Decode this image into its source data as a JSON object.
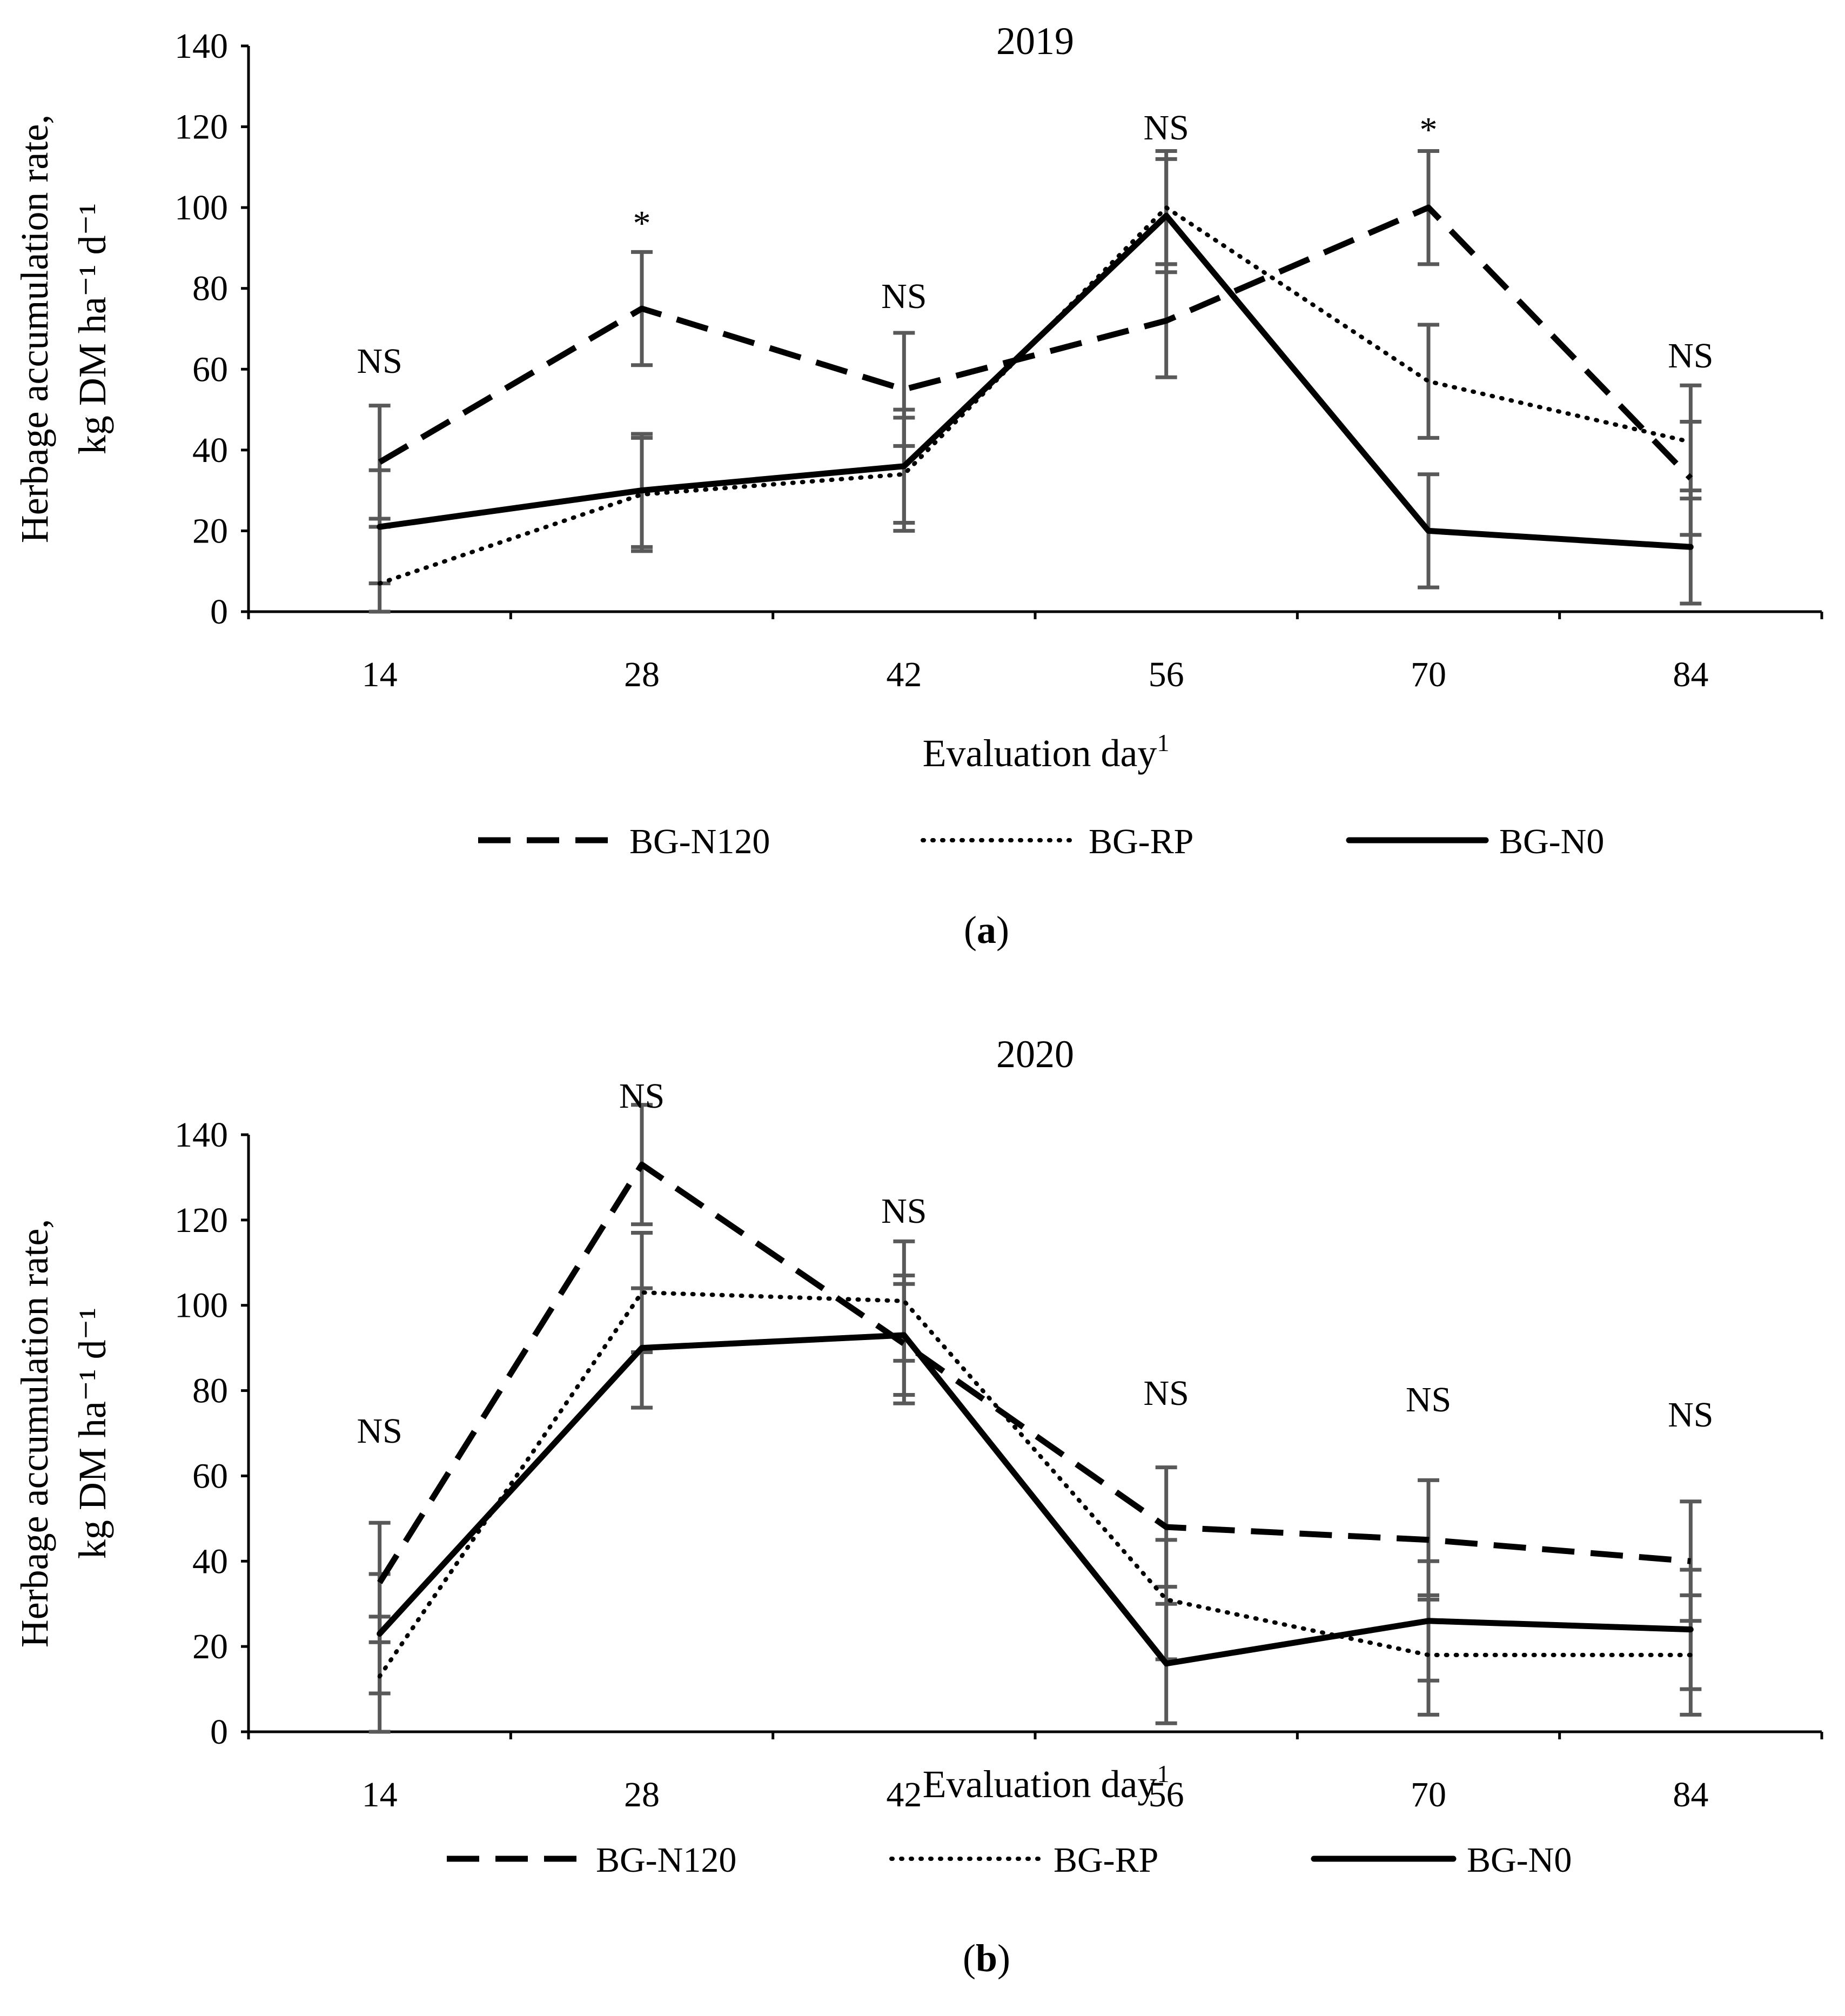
{
  "chart_data": [
    {
      "type": "line",
      "panel_label": "a",
      "title": "2019",
      "xlabel": "Evaluation day",
      "xlabel_sup": "1",
      "ylabel_line1": "Herbage accumulation rate,",
      "ylabel_line2": "kg DM ha⁻¹ d⁻¹",
      "x": [
        14,
        28,
        42,
        56,
        70,
        84
      ],
      "x_tick_labels": [
        "14",
        "28",
        "42",
        "56",
        "70",
        "84"
      ],
      "ylim": [
        0,
        140
      ],
      "y_ticks": [
        0,
        20,
        40,
        60,
        80,
        100,
        120,
        140
      ],
      "y_tick_labels": [
        "0",
        "20",
        "40",
        "60",
        "80",
        "100",
        "120",
        "140"
      ],
      "significance": [
        "NS",
        "*",
        "NS",
        "NS",
        "*",
        "NS"
      ],
      "series": [
        {
          "name": "BG-N120",
          "style": "dashed",
          "values": [
            37,
            75,
            55,
            72,
            100,
            33
          ],
          "error": [
            14,
            14,
            14,
            14,
            14,
            14
          ]
        },
        {
          "name": "BG-RP",
          "style": "dotted",
          "values": [
            7,
            29,
            34,
            100,
            57,
            42
          ],
          "error": [
            14,
            14,
            14,
            14,
            14,
            14
          ]
        },
        {
          "name": "BG-N0",
          "style": "solid",
          "values": [
            21,
            30,
            36,
            98,
            20,
            16
          ],
          "error": [
            14,
            14,
            14,
            14,
            14,
            14
          ]
        }
      ],
      "legend": [
        "BG-N120",
        "BG-RP",
        "BG-N0"
      ]
    },
    {
      "type": "line",
      "panel_label": "b",
      "title": "2020",
      "xlabel": "Evaluation day",
      "xlabel_sup": "1",
      "ylabel_line1": "Herbage accumulation rate,",
      "ylabel_line2": "kg DM ha⁻¹ d⁻¹",
      "x": [
        14,
        28,
        42,
        56,
        70,
        84
      ],
      "x_tick_labels": [
        "14",
        "28",
        "42",
        "56",
        "70",
        "84"
      ],
      "ylim": [
        0,
        140
      ],
      "y_ticks": [
        0,
        20,
        40,
        60,
        80,
        100,
        120,
        140
      ],
      "y_tick_labels": [
        "0",
        "20",
        "40",
        "60",
        "80",
        "100",
        "120",
        "140"
      ],
      "significance": [
        "NS",
        "NS",
        "NS",
        "NS",
        "NS",
        "NS"
      ],
      "series": [
        {
          "name": "BG-N120",
          "style": "dashed",
          "values": [
            35,
            133,
            91,
            48,
            45,
            40
          ],
          "error": [
            14,
            14,
            14,
            14,
            14,
            14
          ]
        },
        {
          "name": "BG-RP",
          "style": "dotted",
          "values": [
            13,
            103,
            101,
            31,
            18,
            18
          ],
          "error": [
            14,
            14,
            14,
            14,
            14,
            14
          ]
        },
        {
          "name": "BG-N0",
          "style": "solid",
          "values": [
            23,
            90,
            93,
            16,
            26,
            24
          ],
          "error": [
            14,
            14,
            14,
            14,
            14,
            14
          ]
        }
      ],
      "legend": [
        "BG-N120",
        "BG-RP",
        "BG-N0"
      ]
    }
  ]
}
